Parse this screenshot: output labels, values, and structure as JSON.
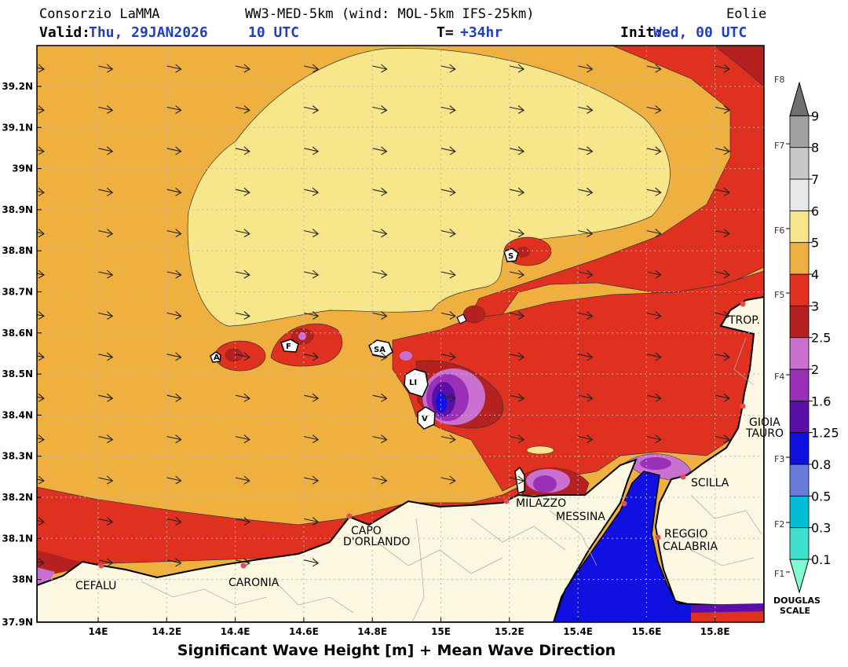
{
  "header": {
    "org": "Consorzio LaMMA",
    "model": "WW3-MED-5km (wind: MOL-5km IFS-25km)",
    "area": "Eolie",
    "valid_label": "Valid:",
    "valid_value": "Thu, 29JAN2026",
    "valid_time": "10 UTC",
    "t_label": "T=",
    "t_value": "+34hr",
    "init_label": "Init:",
    "init_value": "Wed, 00 UTC"
  },
  "axes": {
    "y_ticks": [
      "39.2N",
      "39.1N",
      "39N",
      "38.9N",
      "38.8N",
      "38.7N",
      "38.6N",
      "38.5N",
      "38.4N",
      "38.3N",
      "38.2N",
      "38.1N",
      "38N",
      "37.9N"
    ],
    "x_ticks": [
      "14E",
      "14.2E",
      "14.4E",
      "14.6E",
      "14.8E",
      "15E",
      "15.2E",
      "15.4E",
      "15.6E",
      "15.8E"
    ]
  },
  "places": {
    "cefalu": "CEFALU",
    "caronia": "CARONIA",
    "capo1": "CAPO",
    "capo2": "D'ORLANDO",
    "milazzo": "MILAZZO",
    "messina": "MESSINA",
    "scilla": "SCILLA",
    "reggio1": "REGGIO",
    "reggio2": "CALABRIA",
    "trop": "TROP.",
    "gioia1": "GIOIA",
    "gioia2": "TAURO"
  },
  "islands": {
    "alicudi": "A",
    "filicudi": "F",
    "salina": "SA",
    "lipari": "LI",
    "vulcano": "V",
    "stromboli": "S"
  },
  "colorbar": {
    "levels": [
      "0.1",
      "0.3",
      "0.5",
      "0.8",
      "1.25",
      "1.6",
      "2",
      "2.5",
      "3",
      "4",
      "5",
      "6",
      "7",
      "8",
      "9"
    ],
    "colors": [
      "#7fffd4",
      "#40e0d0",
      "#00bcd4",
      "#6b7bdc",
      "#1010e0",
      "#5a10a8",
      "#9b30b8",
      "#c970d0",
      "#b52020",
      "#e03020",
      "#f0b040",
      "#f8e68a",
      "#e8e8e8",
      "#c8c8c8",
      "#a0a0a0",
      "#707070"
    ],
    "douglas": [
      "F1",
      "F2",
      "F3",
      "F4",
      "F5",
      "F6",
      "F7",
      "F8"
    ],
    "scale_label1": "DOUGLAS",
    "scale_label2": "SCALE"
  },
  "footer": {
    "title": "Significant Wave Height [m] + Mean Wave Direction"
  }
}
